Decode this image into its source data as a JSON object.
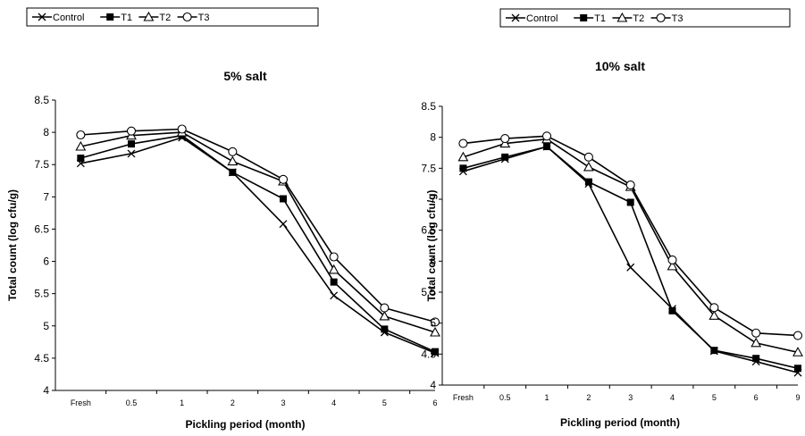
{
  "chart_data": [
    {
      "type": "line",
      "title": "5% salt",
      "xlabel": "Pickling period (month)",
      "ylabel": "Total count (log cfu/g)",
      "categories": [
        "Fresh",
        "0.5",
        "1",
        "2",
        "3",
        "4",
        "5",
        "6"
      ],
      "ylim": [
        4,
        8.5
      ],
      "yticks": [
        "4",
        "4.5",
        "5",
        "5.5",
        "6",
        "6.5",
        "7",
        "7.5",
        "8",
        "8.5"
      ],
      "grid": false,
      "legend_position": "top",
      "series": [
        {
          "name": "Control",
          "marker": "x",
          "values": [
            7.52,
            7.67,
            7.92,
            7.38,
            6.58,
            5.47,
            4.9,
            4.58
          ]
        },
        {
          "name": "T1",
          "marker": "square",
          "values": [
            7.6,
            7.82,
            7.95,
            7.38,
            6.97,
            5.68,
            4.95,
            4.6
          ]
        },
        {
          "name": "T2",
          "marker": "triangle",
          "values": [
            7.78,
            7.95,
            8.0,
            7.55,
            7.24,
            5.87,
            5.15,
            4.9
          ]
        },
        {
          "name": "T3",
          "marker": "circle",
          "values": [
            7.96,
            8.02,
            8.05,
            7.7,
            7.27,
            6.07,
            5.28,
            5.06
          ]
        }
      ]
    },
    {
      "type": "line",
      "title": "10% salt",
      "xlabel": "Pickling period (month)",
      "ylabel": "Total count (log cfu/g)",
      "categories": [
        "Fresh",
        "0.5",
        "1",
        "2",
        "3",
        "4",
        "5",
        "6",
        "9"
      ],
      "ylim": [
        4,
        8.5
      ],
      "yticks": [
        "4",
        "4.5",
        "5",
        "5.5",
        "6",
        "6.5",
        "7",
        "7.5",
        "8",
        "8.5"
      ],
      "grid": false,
      "legend_position": "top",
      "series": [
        {
          "name": "Control",
          "marker": "x",
          "values": [
            7.45,
            7.65,
            7.85,
            7.25,
            5.9,
            5.23,
            4.55,
            4.38,
            4.2
          ]
        },
        {
          "name": "T1",
          "marker": "square",
          "values": [
            7.5,
            7.68,
            7.85,
            7.28,
            6.95,
            5.2,
            4.56,
            4.43,
            4.27
          ]
        },
        {
          "name": "T2",
          "marker": "triangle",
          "values": [
            7.68,
            7.9,
            7.97,
            7.52,
            7.2,
            5.92,
            5.12,
            4.68,
            4.53
          ]
        },
        {
          "name": "T3",
          "marker": "circle",
          "values": [
            7.9,
            7.98,
            8.02,
            7.68,
            7.23,
            6.02,
            5.25,
            4.84,
            4.8
          ]
        }
      ]
    }
  ]
}
